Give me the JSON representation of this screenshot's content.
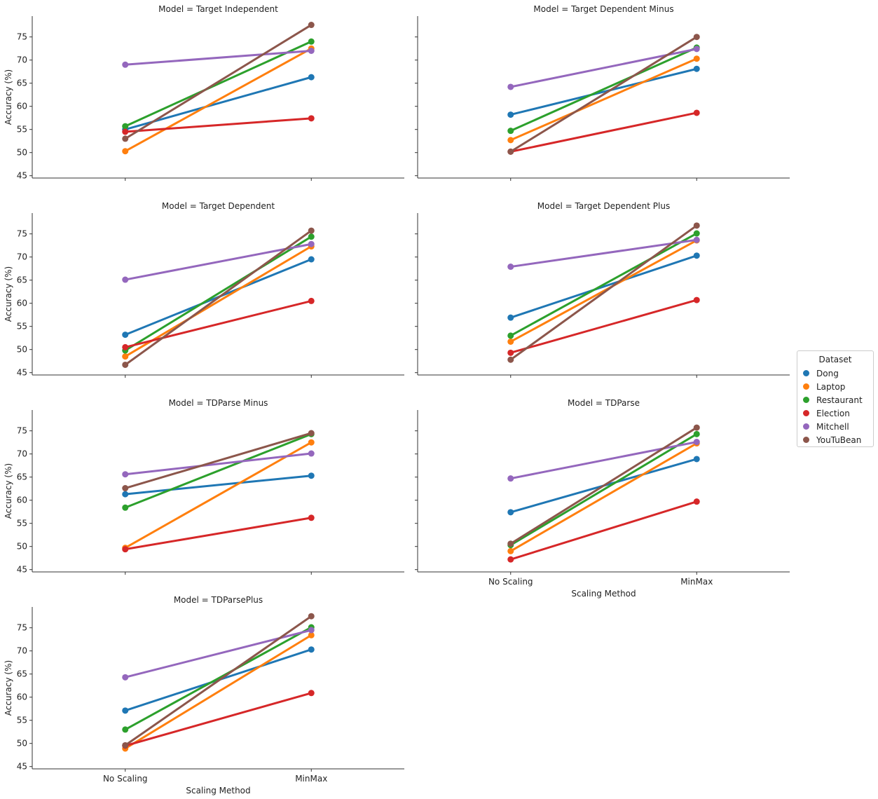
{
  "figure": {
    "legend_title": "Dataset",
    "datasets": [
      {
        "name": "Dong",
        "color": "#1f77b4"
      },
      {
        "name": "Laptop",
        "color": "#ff7f0e"
      },
      {
        "name": "Restaurant",
        "color": "#2ca02c"
      },
      {
        "name": "Election",
        "color": "#d62728"
      },
      {
        "name": "Mitchell",
        "color": "#9467bd"
      },
      {
        "name": "YouTuBean",
        "color": "#8c564b"
      }
    ]
  },
  "chart_data": [
    {
      "type": "line",
      "title": "Model = Target Independent",
      "xlabel": "",
      "ylabel": "Accuracy (%)",
      "categories": [
        "No Scaling",
        "MinMax"
      ],
      "ylim": [
        44.5,
        79.5
      ],
      "yticks": [
        45,
        50,
        55,
        60,
        65,
        70,
        75
      ],
      "series": [
        {
          "name": "Dong",
          "values": [
            55.0,
            66.3
          ]
        },
        {
          "name": "Laptop",
          "values": [
            50.3,
            72.5
          ]
        },
        {
          "name": "Restaurant",
          "values": [
            55.7,
            74.0
          ]
        },
        {
          "name": "Election",
          "values": [
            54.5,
            57.4
          ]
        },
        {
          "name": "Mitchell",
          "values": [
            69.0,
            72.0
          ]
        },
        {
          "name": "YouTuBean",
          "values": [
            53.0,
            77.6
          ]
        }
      ]
    },
    {
      "type": "line",
      "title": "Model = Target Dependent Minus",
      "xlabel": "",
      "ylabel": "",
      "categories": [
        "No Scaling",
        "MinMax"
      ],
      "ylim": [
        44.5,
        79.5
      ],
      "yticks": [
        45,
        50,
        55,
        60,
        65,
        70,
        75
      ],
      "series": [
        {
          "name": "Dong",
          "values": [
            58.2,
            68.1
          ]
        },
        {
          "name": "Laptop",
          "values": [
            52.7,
            70.3
          ]
        },
        {
          "name": "Restaurant",
          "values": [
            54.7,
            72.7
          ]
        },
        {
          "name": "Election",
          "values": [
            50.2,
            58.6
          ]
        },
        {
          "name": "Mitchell",
          "values": [
            64.2,
            72.4
          ]
        },
        {
          "name": "YouTuBean",
          "values": [
            50.2,
            75.0
          ]
        }
      ]
    },
    {
      "type": "line",
      "title": "Model = Target Dependent",
      "xlabel": "",
      "ylabel": "Accuracy (%)",
      "categories": [
        "No Scaling",
        "MinMax"
      ],
      "ylim": [
        44.5,
        79.5
      ],
      "yticks": [
        45,
        50,
        55,
        60,
        65,
        70,
        75
      ],
      "series": [
        {
          "name": "Dong",
          "values": [
            53.2,
            69.5
          ]
        },
        {
          "name": "Laptop",
          "values": [
            48.5,
            72.3
          ]
        },
        {
          "name": "Restaurant",
          "values": [
            49.8,
            74.4
          ]
        },
        {
          "name": "Election",
          "values": [
            50.5,
            60.5
          ]
        },
        {
          "name": "Mitchell",
          "values": [
            65.1,
            72.8
          ]
        },
        {
          "name": "YouTuBean",
          "values": [
            46.7,
            75.7
          ]
        }
      ]
    },
    {
      "type": "line",
      "title": "Model = Target Dependent Plus",
      "xlabel": "",
      "ylabel": "",
      "categories": [
        "No Scaling",
        "MinMax"
      ],
      "ylim": [
        44.5,
        79.5
      ],
      "yticks": [
        45,
        50,
        55,
        60,
        65,
        70,
        75
      ],
      "series": [
        {
          "name": "Dong",
          "values": [
            56.9,
            70.3
          ]
        },
        {
          "name": "Laptop",
          "values": [
            51.7,
            73.6
          ]
        },
        {
          "name": "Restaurant",
          "values": [
            53.0,
            75.1
          ]
        },
        {
          "name": "Election",
          "values": [
            49.3,
            60.7
          ]
        },
        {
          "name": "Mitchell",
          "values": [
            67.9,
            73.7
          ]
        },
        {
          "name": "YouTuBean",
          "values": [
            47.8,
            76.8
          ]
        }
      ]
    },
    {
      "type": "line",
      "title": "Model = TDParse Minus",
      "xlabel": "",
      "ylabel": "Accuracy (%)",
      "categories": [
        "No Scaling",
        "MinMax"
      ],
      "ylim": [
        44.5,
        79.5
      ],
      "yticks": [
        45,
        50,
        55,
        60,
        65,
        70,
        75
      ],
      "series": [
        {
          "name": "Dong",
          "values": [
            61.3,
            65.3
          ]
        },
        {
          "name": "Laptop",
          "values": [
            49.7,
            72.5
          ]
        },
        {
          "name": "Restaurant",
          "values": [
            58.4,
            74.3
          ]
        },
        {
          "name": "Election",
          "values": [
            49.4,
            56.2
          ]
        },
        {
          "name": "Mitchell",
          "values": [
            65.6,
            70.1
          ]
        },
        {
          "name": "YouTuBean",
          "values": [
            62.6,
            74.5
          ]
        }
      ]
    },
    {
      "type": "line",
      "title": "Model = TDParse",
      "xlabel": "Scaling Method",
      "ylabel": "",
      "categories": [
        "No Scaling",
        "MinMax"
      ],
      "ylim": [
        44.5,
        79.5
      ],
      "yticks": [
        45,
        50,
        55,
        60,
        65,
        70,
        75
      ],
      "series": [
        {
          "name": "Dong",
          "values": [
            57.4,
            68.9
          ]
        },
        {
          "name": "Laptop",
          "values": [
            49.0,
            72.3
          ]
        },
        {
          "name": "Restaurant",
          "values": [
            50.3,
            74.3
          ]
        },
        {
          "name": "Election",
          "values": [
            47.2,
            59.7
          ]
        },
        {
          "name": "Mitchell",
          "values": [
            64.7,
            72.6
          ]
        },
        {
          "name": "YouTuBean",
          "values": [
            50.6,
            75.7
          ]
        }
      ]
    },
    {
      "type": "line",
      "title": "Model = TDParsePlus",
      "xlabel": "Scaling Method",
      "ylabel": "Accuracy (%)",
      "categories": [
        "No Scaling",
        "MinMax"
      ],
      "ylim": [
        44.5,
        79.5
      ],
      "yticks": [
        45,
        50,
        55,
        60,
        65,
        70,
        75
      ],
      "series": [
        {
          "name": "Dong",
          "values": [
            57.1,
            70.3
          ]
        },
        {
          "name": "Laptop",
          "values": [
            48.9,
            73.4
          ]
        },
        {
          "name": "Restaurant",
          "values": [
            53.0,
            75.1
          ]
        },
        {
          "name": "Election",
          "values": [
            49.5,
            60.9
          ]
        },
        {
          "name": "Mitchell",
          "values": [
            64.3,
            74.5
          ]
        },
        {
          "name": "YouTuBean",
          "values": [
            49.6,
            77.5
          ]
        }
      ]
    }
  ]
}
